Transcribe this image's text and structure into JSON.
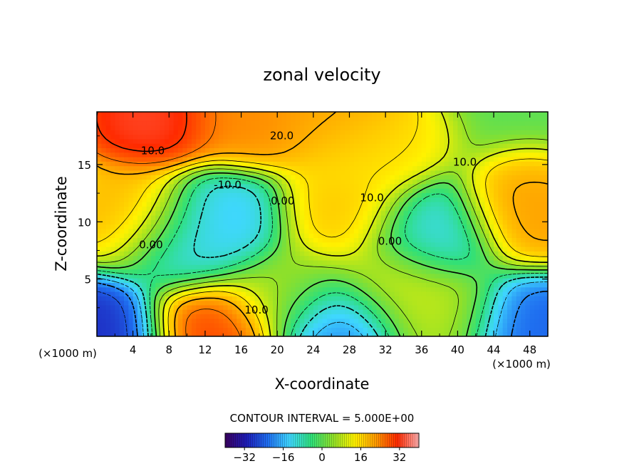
{
  "chart_data": {
    "type": "heatmap",
    "title": "zonal velocity",
    "xlabel": "X-coordinate",
    "ylabel": "Z-coordinate",
    "x_unit": "(×1000 m)",
    "z_unit": "(×1000 m)",
    "xlim": [
      0,
      50
    ],
    "ylim": [
      0,
      19.6
    ],
    "x_ticks": [
      4,
      8,
      12,
      16,
      20,
      24,
      28,
      32,
      36,
      40,
      44,
      48
    ],
    "y_ticks": [
      5,
      10,
      15
    ],
    "contour_interval_text": "CONTOUR INTERVAL = 5.000E+00",
    "colorbar": {
      "min": -40,
      "max": 40,
      "tick_values": [
        -32,
        -16,
        0,
        16,
        32
      ],
      "tick_labels": [
        "−32",
        "−16",
        "0",
        "16",
        "32"
      ],
      "colors": [
        "#3a0060",
        "#1d1db8",
        "#1f6ff0",
        "#3fd7ff",
        "#2ee07a",
        "#8ee02a",
        "#fff200",
        "#ff9a00",
        "#ff2a00",
        "#ffb0b0"
      ]
    },
    "features": [
      {
        "x": 4,
        "z": 10.5,
        "u": 20
      },
      {
        "x": 6,
        "z": 19,
        "u": 34
      },
      {
        "x": 17,
        "z": 19,
        "u": 24
      },
      {
        "x": 27,
        "z": 19,
        "u": 22
      },
      {
        "x": 30,
        "z": 16.5,
        "u": 15
      },
      {
        "x": 14,
        "z": 10,
        "u": -15
      },
      {
        "x": 10,
        "z": 8,
        "u": -12
      },
      {
        "x": 27,
        "z": 10.5,
        "u": 18
      },
      {
        "x": 37,
        "z": 8.5,
        "u": -13
      },
      {
        "x": 48,
        "z": 10.5,
        "u": 22
      },
      {
        "x": 13,
        "z": 1,
        "u": 30
      },
      {
        "x": 27,
        "z": 1.2,
        "u": -22
      },
      {
        "x": 0,
        "z": 0.5,
        "u": -30
      },
      {
        "x": 48,
        "z": 1,
        "u": -24
      },
      {
        "x": 33,
        "z": 4.5,
        "u": 12
      },
      {
        "x": 38,
        "z": 2,
        "u": 8
      },
      {
        "x": 21,
        "z": 4,
        "u": 6
      }
    ],
    "contour_labels": [
      {
        "text": "20.0",
        "x": 20.5,
        "z": 17.2
      },
      {
        "text": "10.0",
        "x": 6.2,
        "z": 15.9
      },
      {
        "text": "10.0",
        "x": 40.8,
        "z": 14.9
      },
      {
        "text": "-10.0",
        "x": 14.5,
        "z": 12.9
      },
      {
        "text": "10.0",
        "x": 30.5,
        "z": 11.8
      },
      {
        "text": "0.00",
        "x": 20.6,
        "z": 11.5
      },
      {
        "text": "0.00",
        "x": 6.0,
        "z": 7.7
      },
      {
        "text": "0.00",
        "x": 32.5,
        "z": 8.0
      },
      {
        "text": "10.0",
        "x": 17.7,
        "z": 2.0
      }
    ]
  }
}
